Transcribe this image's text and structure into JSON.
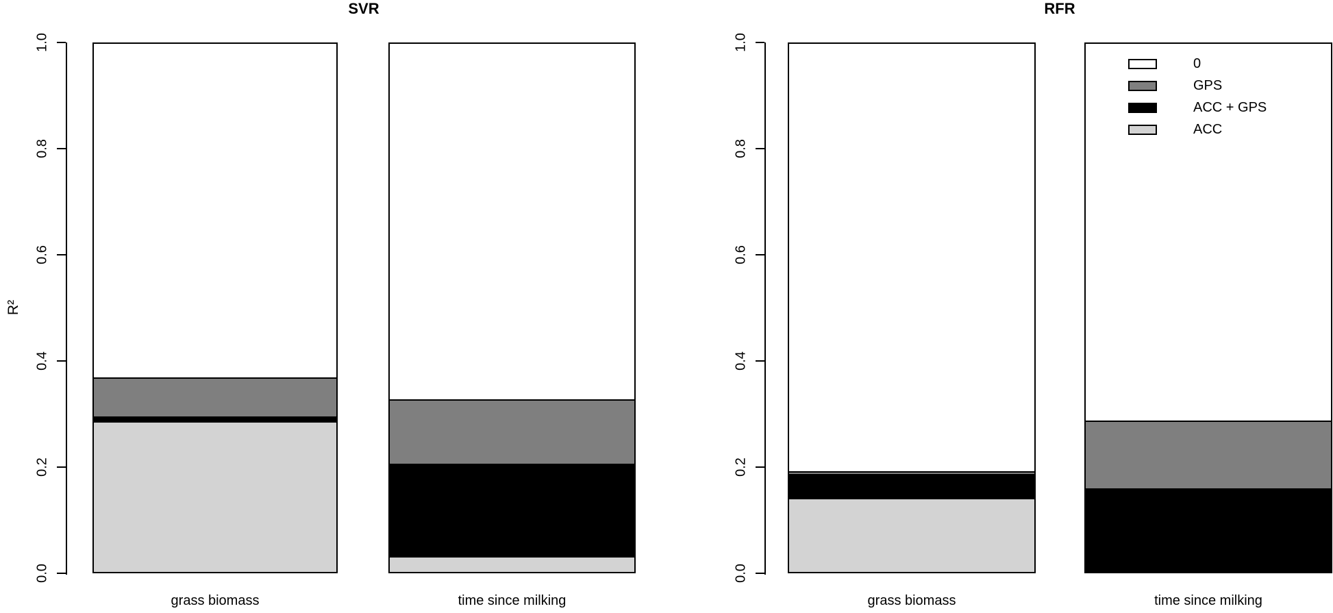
{
  "figure": {
    "background": "#ffffff",
    "axis_color": "#000000"
  },
  "chart_data": [
    {
      "type": "bar",
      "stacked": true,
      "title": "SVR",
      "ylabel": "R²",
      "ylim": [
        0,
        1
      ],
      "grid": false,
      "yticks": [
        0.0,
        0.2,
        0.4,
        0.6,
        0.8,
        1.0
      ],
      "ytick_labels": [
        "0.0",
        "0.2",
        "0.4",
        "0.6",
        "0.8",
        "1.0"
      ],
      "categories": [
        "grass biomass",
        "time since milking"
      ],
      "series": [
        {
          "name": "ACC",
          "color": "#d3d3d3",
          "values": [
            0.286,
            0.032
          ]
        },
        {
          "name": "ACC + GPS",
          "color": "#000000",
          "values": [
            0.009,
            0.174
          ]
        },
        {
          "name": "GPS",
          "color": "#7f7f7f",
          "values": [
            0.074,
            0.122
          ]
        },
        {
          "name": "0",
          "color": "#ffffff",
          "values": [
            0.631,
            0.672
          ]
        }
      ]
    },
    {
      "type": "bar",
      "stacked": true,
      "title": "RFR",
      "ylabel": "",
      "ylim": [
        0,
        1
      ],
      "grid": false,
      "yticks": [
        0.0,
        0.2,
        0.4,
        0.6,
        0.8,
        1.0
      ],
      "ytick_labels": [
        "0.0",
        "0.2",
        "0.4",
        "0.6",
        "0.8",
        "1.0"
      ],
      "categories": [
        "grass biomass",
        "time since milking"
      ],
      "series": [
        {
          "name": "ACC",
          "color": "#d3d3d3",
          "values": [
            0.142,
            0.0
          ]
        },
        {
          "name": "ACC + GPS",
          "color": "#000000",
          "values": [
            0.045,
            0.16
          ]
        },
        {
          "name": "GPS",
          "color": "#7f7f7f",
          "values": [
            0.005,
            0.128
          ]
        },
        {
          "name": "0",
          "color": "#ffffff",
          "values": [
            0.808,
            0.712
          ]
        }
      ],
      "legend": {
        "position": "top-right",
        "entries": [
          {
            "label": "0",
            "color": "#ffffff"
          },
          {
            "label": "GPS",
            "color": "#7f7f7f"
          },
          {
            "label": "ACC + GPS",
            "color": "#000000"
          },
          {
            "label": "ACC",
            "color": "#d3d3d3"
          }
        ]
      }
    }
  ]
}
